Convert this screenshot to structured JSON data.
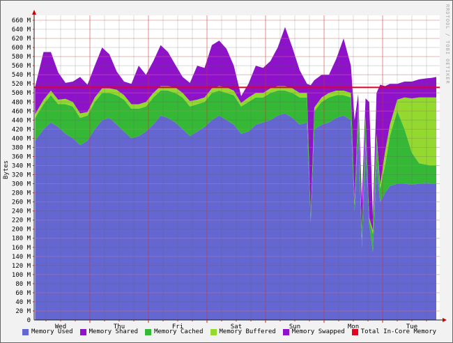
{
  "chart_data": {
    "type": "area",
    "title": "",
    "ylabel": "Bytes",
    "watermark": "RRDTOOL / TOBI OETIKER",
    "x_axis": {
      "day_labels": [
        "Wed",
        "Thu",
        "Fri",
        "Sat",
        "Sun",
        "Mon",
        "Tue"
      ],
      "hours_per_day": 24,
      "minor_grid_hours": 6,
      "major_grid_hours": 24,
      "start_hour": 1.5,
      "end_hour": 166
    },
    "y_axis": {
      "min": 0,
      "max": 660,
      "tick_step": 20,
      "major_step": 40,
      "unit": "M"
    },
    "legend_note": "stacked areas in series order; last series is a horizontal line",
    "t_hours": [
      1.5,
      5,
      8,
      11,
      14,
      17,
      20,
      23,
      26,
      29,
      32,
      35,
      38,
      41,
      44,
      47,
      50,
      53,
      56,
      59,
      62,
      65,
      68,
      71,
      74,
      77,
      80,
      83,
      86,
      89,
      92,
      95,
      98,
      101,
      104,
      107,
      110,
      113,
      114.5,
      116,
      119,
      122,
      125,
      128,
      131,
      132.5,
      134,
      135.5,
      137,
      138.5,
      140,
      141.5,
      143,
      145,
      147,
      150,
      153,
      156,
      159,
      162,
      164,
      166
    ],
    "series": [
      {
        "name": "Memory Used",
        "color": "#6467d1",
        "kind": "stack",
        "values": [
          395,
          420,
          435,
          425,
          410,
          400,
          385,
          395,
          420,
          440,
          445,
          430,
          415,
          400,
          405,
          415,
          430,
          450,
          445,
          435,
          420,
          405,
          415,
          425,
          440,
          450,
          440,
          430,
          410,
          415,
          430,
          435,
          440,
          450,
          455,
          445,
          430,
          435,
          215,
          420,
          430,
          435,
          445,
          450,
          440,
          240,
          420,
          160,
          390,
          210,
          150,
          340,
          260,
          280,
          295,
          300,
          300,
          298,
          300,
          302,
          300,
          300
        ]
      },
      {
        "name": "Memory Shared",
        "color": "#8e12c9",
        "kind": "stack",
        "values": [
          0,
          0,
          0,
          0,
          0,
          0,
          0,
          0,
          0,
          0,
          0,
          0,
          0,
          0,
          0,
          0,
          0,
          0,
          0,
          0,
          0,
          0,
          0,
          0,
          0,
          0,
          0,
          0,
          0,
          0,
          0,
          0,
          0,
          0,
          0,
          0,
          0,
          0,
          0,
          0,
          0,
          0,
          0,
          0,
          0,
          0,
          0,
          0,
          0,
          0,
          0,
          0,
          0,
          0,
          0,
          0,
          0,
          0,
          0,
          0,
          0,
          0
        ]
      },
      {
        "name": "Memory Cached",
        "color": "#35b835",
        "kind": "stack",
        "values": [
          50,
          55,
          60,
          50,
          65,
          70,
          60,
          55,
          60,
          60,
          55,
          65,
          70,
          65,
          60,
          55,
          60,
          55,
          60,
          65,
          70,
          65,
          60,
          55,
          60,
          55,
          60,
          65,
          60,
          65,
          60,
          55,
          60,
          55,
          50,
          55,
          60,
          55,
          8,
          40,
          50,
          55,
          50,
          45,
          50,
          15,
          45,
          20,
          50,
          10,
          40,
          60,
          30,
          60,
          110,
          160,
          120,
          70,
          45,
          40,
          40,
          40
        ]
      },
      {
        "name": "Memory Buffered",
        "color": "#93d930",
        "kind": "stack",
        "values": [
          8,
          10,
          10,
          10,
          12,
          10,
          10,
          8,
          10,
          10,
          10,
          12,
          10,
          10,
          10,
          10,
          10,
          10,
          10,
          12,
          10,
          12,
          10,
          10,
          10,
          10,
          12,
          10,
          8,
          10,
          10,
          10,
          10,
          10,
          10,
          10,
          10,
          10,
          4,
          8,
          10,
          10,
          10,
          10,
          10,
          5,
          8,
          5,
          8,
          5,
          8,
          10,
          8,
          30,
          25,
          25,
          70,
          120,
          145,
          148,
          150,
          150
        ]
      },
      {
        "name": "Memory Swapped",
        "color": "#8e12c9",
        "kind": "stack",
        "values": [
          60,
          105,
          85,
          60,
          35,
          45,
          80,
          60,
          70,
          90,
          75,
          40,
          30,
          45,
          85,
          60,
          70,
          90,
          75,
          50,
          35,
          40,
          75,
          65,
          95,
          100,
          85,
          55,
          15,
          30,
          60,
          55,
          60,
          85,
          130,
          90,
          50,
          20,
          290,
          60,
          50,
          40,
          70,
          115,
          60,
          180,
          25,
          75,
          40,
          255,
          30,
          90,
          220,
          145,
          90,
          35,
          35,
          37,
          40,
          42,
          43,
          45
        ]
      },
      {
        "name": "Total In-Core Memory",
        "color": "#e30020",
        "kind": "line",
        "value": 512
      }
    ]
  }
}
